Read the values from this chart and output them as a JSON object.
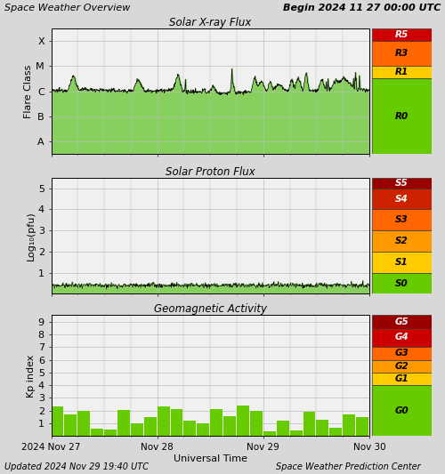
{
  "title_left": "Space Weather Overview",
  "title_right": "Begin 2024 11 27 00:00 UTC",
  "footer_left": "Updated 2024 Nov 29 19:40 UTC",
  "footer_right": "Space Weather Prediction Center",
  "xlabel": "Universal Time",
  "xtick_labels": [
    "2024 Nov 27",
    "Nov 28",
    "Nov 29",
    "Nov 30"
  ],
  "panel1_title": "Solar X-ray Flux",
  "panel1_ylabel": "Flare Class",
  "panel2_title": "Solar Proton Flux",
  "panel2_ylabel": "Log₁₀(pfu)",
  "panel3_title": "Geomagnetic Activity",
  "panel3_ylabel": "Kp index",
  "bg_color": "#d8d8d8",
  "plot_bg": "#f0f0f0",
  "grid_color": "#bbbbbb",
  "line_color": "#000000",
  "fill_color_top": "#44aa00",
  "fill_color_bottom": "#aaddaa",
  "scale1_bands": [
    [
      2.0,
      2.5,
      "#cc0000",
      "R5"
    ],
    [
      1.0,
      2.0,
      "#ff6600",
      "R3"
    ],
    [
      0.5,
      1.0,
      "#ffcc00",
      "R1"
    ],
    [
      -2.5,
      0.5,
      "#66cc00",
      "R0"
    ]
  ],
  "scale2_bands": [
    [
      5.0,
      5.5,
      "#990000",
      "S5"
    ],
    [
      4.0,
      5.0,
      "#cc2200",
      "S4"
    ],
    [
      3.0,
      4.0,
      "#ff6600",
      "S3"
    ],
    [
      2.0,
      3.0,
      "#ff9900",
      "S2"
    ],
    [
      1.0,
      2.0,
      "#ffcc00",
      "S1"
    ],
    [
      0.0,
      1.0,
      "#66cc00",
      "S0"
    ]
  ],
  "scale3_bands": [
    [
      8.5,
      9.5,
      "#990000",
      "G5"
    ],
    [
      7.0,
      8.5,
      "#cc0000",
      "G4"
    ],
    [
      6.0,
      7.0,
      "#ff6600",
      "G3"
    ],
    [
      5.0,
      6.0,
      "#ff9900",
      "G2"
    ],
    [
      4.0,
      5.0,
      "#ffcc00",
      "G1"
    ],
    [
      0.0,
      4.0,
      "#66cc00",
      "G0"
    ]
  ],
  "xray_seed": 12345,
  "proton_seed": 99,
  "kp_seed": 77
}
